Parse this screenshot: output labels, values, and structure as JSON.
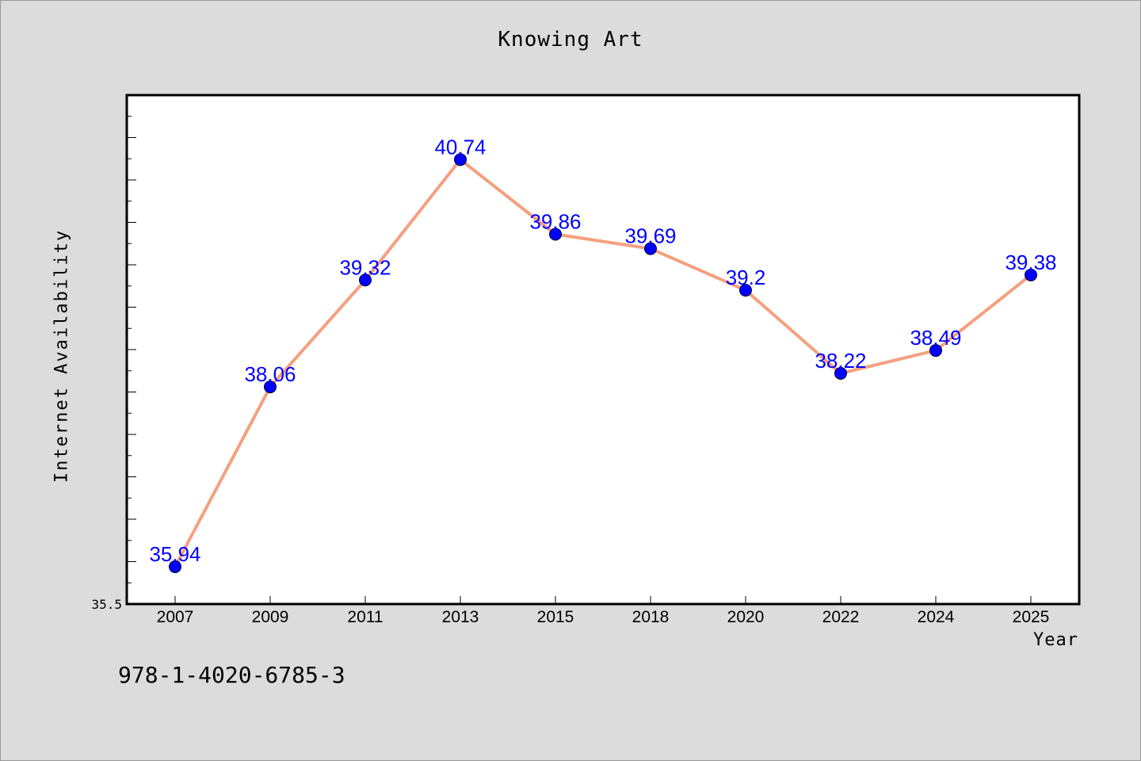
{
  "page": {
    "isbn": "978-1-4020-6785-3"
  },
  "chart_data": {
    "type": "line",
    "title": "Knowing Art",
    "xlabel": "Year",
    "ylabel": "Internet Availability",
    "categories": [
      "2007",
      "2009",
      "2011",
      "2013",
      "2015",
      "2018",
      "2020",
      "2022",
      "2024",
      "2025"
    ],
    "series": [
      {
        "values": [
          35.94,
          38.06,
          39.32,
          40.74,
          39.86,
          39.69,
          39.2,
          38.22,
          38.49,
          39.38
        ],
        "labels": [
          "35.94",
          "38.06",
          "39.32",
          "40.74",
          "39.86",
          "39.69",
          "39.2",
          "38.22",
          "38.49",
          "39.38"
        ],
        "line_color": "#f4a07f",
        "marker_color": "#0000ff"
      }
    ],
    "ylim": [
      35.5,
      41.5
    ],
    "ytick_labels": [
      "35.5"
    ],
    "grid": false,
    "legend": "none"
  }
}
